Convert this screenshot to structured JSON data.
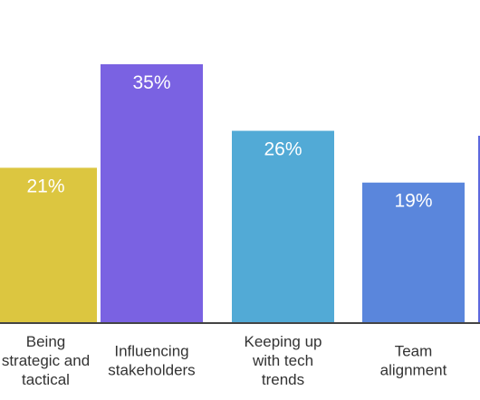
{
  "chart_data": {
    "type": "bar",
    "categories": [
      [
        "Being",
        "strategic and",
        "tactical"
      ],
      [
        "Influencing",
        "stakeholders"
      ],
      [
        "Keeping up",
        "with tech",
        "trends"
      ],
      [
        "Team",
        "alignment"
      ]
    ],
    "values": [
      21,
      35,
      26,
      19
    ],
    "value_labels": [
      "21%",
      "35%",
      "26%",
      "19%"
    ],
    "colors": [
      "#dcc640",
      "#7a62e2",
      "#52aad6",
      "#5a86dc"
    ],
    "partial_next_bar_color": "#5d68de",
    "axis_color": "#444444",
    "title": "",
    "xlabel": "",
    "ylabel": "",
    "ylim": [
      0,
      35
    ],
    "grid": false,
    "legend": "none"
  }
}
